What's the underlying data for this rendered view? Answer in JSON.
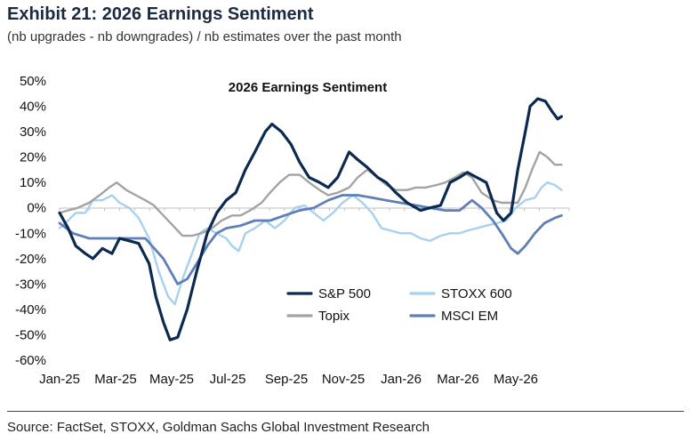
{
  "header": {
    "title": "Exhibit 21: 2026 Earnings Sentiment",
    "subtitle": "(nb upgrades - nb downgrades) / nb estimates over the past month"
  },
  "footer": {
    "source": "Source: FactSet, STOXX, Goldman Sachs Global Investment Research"
  },
  "chart_data": {
    "type": "line",
    "title": "2026 Earnings Sentiment",
    "xlabel": "",
    "ylabel": "",
    "x_ticks": [
      "Jan-25",
      "Mar-25",
      "May-25",
      "Jul-25",
      "Sep-25",
      "Nov-25",
      "Jan-26",
      "Mar-26",
      "May-26"
    ],
    "y_ticks": [
      "50%",
      "40%",
      "30%",
      "20%",
      "10%",
      "0%",
      "-10%",
      "-20%",
      "-30%",
      "-40%",
      "-50%",
      "-60%"
    ],
    "ylim": [
      -60,
      50
    ],
    "x_range": [
      "2025-01-01",
      "2026-06-20"
    ],
    "grid": false,
    "legend_position": "bottom-right",
    "series": [
      {
        "name": "S&P 500",
        "color": "#0b2a4f",
        "points": [
          [
            "2025-01-01",
            -2
          ],
          [
            "2025-01-10",
            -8
          ],
          [
            "2025-01-18",
            -15
          ],
          [
            "2025-01-28",
            -18
          ],
          [
            "2025-02-05",
            -20
          ],
          [
            "2025-02-15",
            -16
          ],
          [
            "2025-02-25",
            -18
          ],
          [
            "2025-03-05",
            -12
          ],
          [
            "2025-03-15",
            -13
          ],
          [
            "2025-03-25",
            -14
          ],
          [
            "2025-04-05",
            -22
          ],
          [
            "2025-04-12",
            -35
          ],
          [
            "2025-04-20",
            -45
          ],
          [
            "2025-04-27",
            -52
          ],
          [
            "2025-05-05",
            -51
          ],
          [
            "2025-05-15",
            -40
          ],
          [
            "2025-05-25",
            -25
          ],
          [
            "2025-06-05",
            -10
          ],
          [
            "2025-06-15",
            -2
          ],
          [
            "2025-06-25",
            3
          ],
          [
            "2025-07-05",
            6
          ],
          [
            "2025-07-15",
            15
          ],
          [
            "2025-07-25",
            22
          ],
          [
            "2025-08-05",
            30
          ],
          [
            "2025-08-12",
            33
          ],
          [
            "2025-08-22",
            30
          ],
          [
            "2025-09-01",
            25
          ],
          [
            "2025-09-10",
            18
          ],
          [
            "2025-09-20",
            12
          ],
          [
            "2025-10-01",
            10
          ],
          [
            "2025-10-10",
            8
          ],
          [
            "2025-10-20",
            12
          ],
          [
            "2025-11-01",
            22
          ],
          [
            "2025-11-10",
            19
          ],
          [
            "2025-11-20",
            16
          ],
          [
            "2025-12-01",
            12
          ],
          [
            "2025-12-10",
            10
          ],
          [
            "2025-12-20",
            6
          ],
          [
            "2026-01-01",
            2
          ],
          [
            "2026-01-15",
            -1
          ],
          [
            "2026-01-25",
            0
          ],
          [
            "2026-02-05",
            1
          ],
          [
            "2026-02-15",
            10
          ],
          [
            "2026-02-25",
            12
          ],
          [
            "2026-03-05",
            14
          ],
          [
            "2026-03-15",
            12
          ],
          [
            "2026-03-25",
            10
          ],
          [
            "2026-04-05",
            -2
          ],
          [
            "2026-04-12",
            -5
          ],
          [
            "2026-04-20",
            -2
          ],
          [
            "2026-04-27",
            15
          ],
          [
            "2026-05-05",
            30
          ],
          [
            "2026-05-10",
            40
          ],
          [
            "2026-05-18",
            43
          ],
          [
            "2026-05-26",
            42
          ],
          [
            "2026-06-02",
            38
          ],
          [
            "2026-06-08",
            35
          ],
          [
            "2026-06-12",
            36
          ]
        ]
      },
      {
        "name": "STOXX 600",
        "color": "#a7d1ee",
        "points": [
          [
            "2025-01-01",
            -8
          ],
          [
            "2025-01-10",
            -5
          ],
          [
            "2025-01-18",
            -2
          ],
          [
            "2025-01-28",
            -2
          ],
          [
            "2025-02-05",
            3
          ],
          [
            "2025-02-15",
            3
          ],
          [
            "2025-02-25",
            5
          ],
          [
            "2025-03-05",
            2
          ],
          [
            "2025-03-15",
            0
          ],
          [
            "2025-03-25",
            -4
          ],
          [
            "2025-04-05",
            -12
          ],
          [
            "2025-04-15",
            -25
          ],
          [
            "2025-04-25",
            -35
          ],
          [
            "2025-05-02",
            -38
          ],
          [
            "2025-05-10",
            -28
          ],
          [
            "2025-05-20",
            -18
          ],
          [
            "2025-05-28",
            -10
          ],
          [
            "2025-06-05",
            -8
          ],
          [
            "2025-06-15",
            -10
          ],
          [
            "2025-06-25",
            -12
          ],
          [
            "2025-07-01",
            -15
          ],
          [
            "2025-07-08",
            -17
          ],
          [
            "2025-07-15",
            -10
          ],
          [
            "2025-07-25",
            -8
          ],
          [
            "2025-08-05",
            -5
          ],
          [
            "2025-08-15",
            -8
          ],
          [
            "2025-08-25",
            -5
          ],
          [
            "2025-09-05",
            0
          ],
          [
            "2025-09-15",
            1
          ],
          [
            "2025-09-25",
            -2
          ],
          [
            "2025-10-05",
            -5
          ],
          [
            "2025-10-15",
            -2
          ],
          [
            "2025-10-25",
            2
          ],
          [
            "2025-11-05",
            5
          ],
          [
            "2025-11-15",
            2
          ],
          [
            "2025-11-25",
            -2
          ],
          [
            "2025-12-05",
            -8
          ],
          [
            "2025-12-15",
            -9
          ],
          [
            "2025-12-25",
            -10
          ],
          [
            "2026-01-05",
            -10
          ],
          [
            "2026-01-15",
            -12
          ],
          [
            "2026-01-25",
            -13
          ],
          [
            "2026-02-05",
            -11
          ],
          [
            "2026-02-15",
            -10
          ],
          [
            "2026-02-25",
            -10
          ],
          [
            "2026-03-05",
            -9
          ],
          [
            "2026-03-15",
            -8
          ],
          [
            "2026-03-25",
            -7
          ],
          [
            "2026-04-05",
            -6
          ],
          [
            "2026-04-15",
            -5
          ],
          [
            "2026-04-25",
            0
          ],
          [
            "2026-05-05",
            3
          ],
          [
            "2026-05-15",
            4
          ],
          [
            "2026-05-22",
            8
          ],
          [
            "2026-05-28",
            10
          ],
          [
            "2026-06-05",
            9
          ],
          [
            "2026-06-12",
            7
          ]
        ]
      },
      {
        "name": "Topix",
        "color": "#a3a3a3",
        "points": [
          [
            "2025-01-01",
            -2
          ],
          [
            "2025-01-10",
            -1
          ],
          [
            "2025-01-20",
            0
          ],
          [
            "2025-02-01",
            2
          ],
          [
            "2025-02-12",
            5
          ],
          [
            "2025-02-22",
            8
          ],
          [
            "2025-03-02",
            10
          ],
          [
            "2025-03-12",
            7
          ],
          [
            "2025-03-22",
            5
          ],
          [
            "2025-04-01",
            3
          ],
          [
            "2025-04-10",
            1
          ],
          [
            "2025-04-20",
            -3
          ],
          [
            "2025-04-30",
            -7
          ],
          [
            "2025-05-10",
            -11
          ],
          [
            "2025-05-20",
            -11
          ],
          [
            "2025-05-30",
            -10
          ],
          [
            "2025-06-10",
            -8
          ],
          [
            "2025-06-20",
            -5
          ],
          [
            "2025-07-01",
            -3
          ],
          [
            "2025-07-10",
            -3
          ],
          [
            "2025-07-20",
            -1
          ],
          [
            "2025-08-01",
            2
          ],
          [
            "2025-08-10",
            6
          ],
          [
            "2025-08-20",
            10
          ],
          [
            "2025-08-30",
            13
          ],
          [
            "2025-09-10",
            13
          ],
          [
            "2025-09-20",
            10
          ],
          [
            "2025-10-01",
            7
          ],
          [
            "2025-10-10",
            5
          ],
          [
            "2025-10-20",
            6
          ],
          [
            "2025-11-01",
            8
          ],
          [
            "2025-11-10",
            12
          ],
          [
            "2025-11-20",
            15
          ],
          [
            "2025-12-01",
            12
          ],
          [
            "2025-12-10",
            9
          ],
          [
            "2025-12-20",
            7
          ],
          [
            "2026-01-01",
            7
          ],
          [
            "2026-01-10",
            8
          ],
          [
            "2026-01-20",
            8
          ],
          [
            "2026-02-01",
            9
          ],
          [
            "2026-02-10",
            10
          ],
          [
            "2026-02-20",
            12
          ],
          [
            "2026-03-01",
            14
          ],
          [
            "2026-03-10",
            12
          ],
          [
            "2026-03-20",
            6
          ],
          [
            "2026-04-01",
            3
          ],
          [
            "2026-04-10",
            2
          ],
          [
            "2026-04-20",
            2
          ],
          [
            "2026-04-27",
            2
          ],
          [
            "2026-05-05",
            8
          ],
          [
            "2026-05-12",
            15
          ],
          [
            "2026-05-20",
            22
          ],
          [
            "2026-05-28",
            20
          ],
          [
            "2026-06-05",
            17
          ],
          [
            "2026-06-12",
            17
          ]
        ]
      },
      {
        "name": "MSCI EM",
        "color": "#5f7fb6",
        "points": [
          [
            "2025-01-01",
            -6
          ],
          [
            "2025-01-15",
            -10
          ],
          [
            "2025-02-01",
            -12
          ],
          [
            "2025-03-01",
            -12
          ],
          [
            "2025-04-01",
            -12
          ],
          [
            "2025-04-20",
            -20
          ],
          [
            "2025-05-05",
            -30
          ],
          [
            "2025-05-15",
            -28
          ],
          [
            "2025-05-25",
            -22
          ],
          [
            "2025-06-05",
            -15
          ],
          [
            "2025-06-15",
            -10
          ],
          [
            "2025-06-25",
            -8
          ],
          [
            "2025-07-10",
            -7
          ],
          [
            "2025-07-25",
            -5
          ],
          [
            "2025-08-10",
            -5
          ],
          [
            "2025-08-25",
            -3
          ],
          [
            "2025-09-10",
            -1
          ],
          [
            "2025-09-25",
            0
          ],
          [
            "2025-10-10",
            3
          ],
          [
            "2025-10-25",
            5
          ],
          [
            "2025-11-10",
            5
          ],
          [
            "2025-11-25",
            4
          ],
          [
            "2025-12-10",
            3
          ],
          [
            "2025-12-25",
            2
          ],
          [
            "2026-01-10",
            1
          ],
          [
            "2026-01-25",
            0
          ],
          [
            "2026-02-10",
            -1
          ],
          [
            "2026-02-25",
            -1
          ],
          [
            "2026-03-10",
            3
          ],
          [
            "2026-03-20",
            0
          ],
          [
            "2026-04-01",
            -5
          ],
          [
            "2026-04-10",
            -10
          ],
          [
            "2026-04-20",
            -16
          ],
          [
            "2026-04-27",
            -18
          ],
          [
            "2026-05-05",
            -15
          ],
          [
            "2026-05-15",
            -10
          ],
          [
            "2026-05-25",
            -6
          ],
          [
            "2026-06-05",
            -4
          ],
          [
            "2026-06-12",
            -3
          ]
        ]
      }
    ]
  }
}
